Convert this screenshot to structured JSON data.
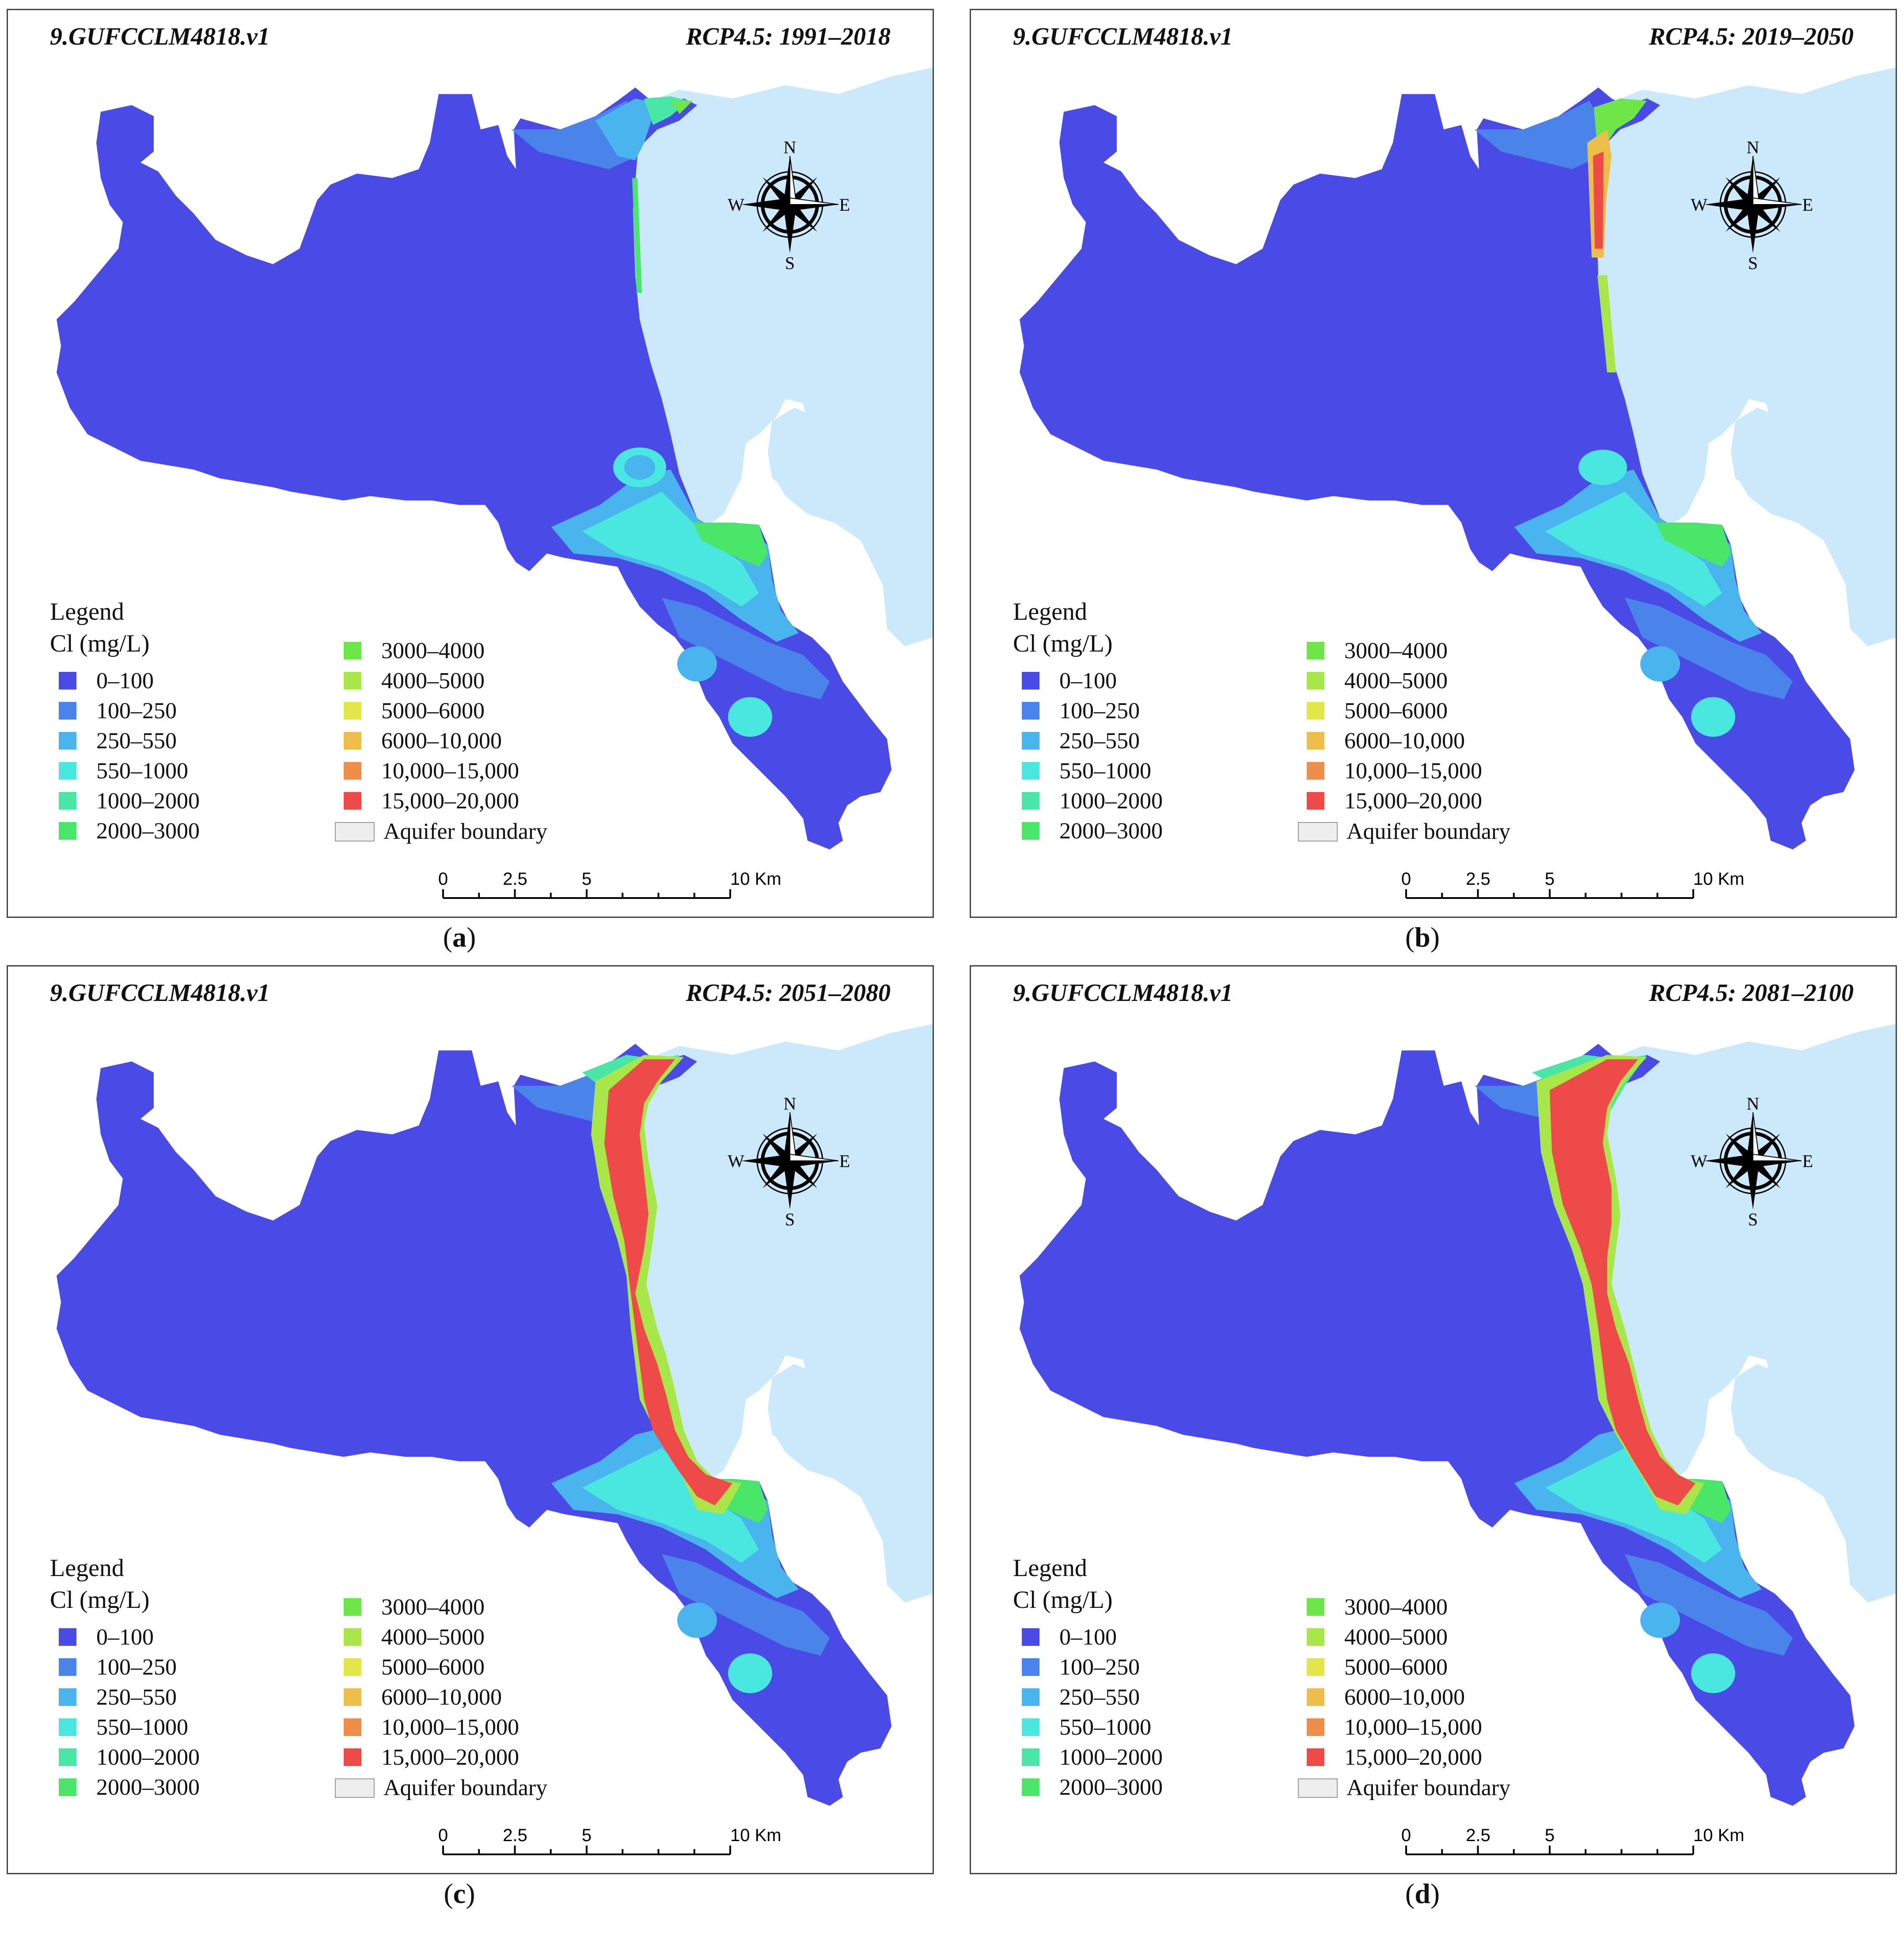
{
  "model_label": "9.GUFCCLM4818.v1",
  "panels": [
    {
      "scenario": "RCP4.5: 1991–2018",
      "letter": "a",
      "stage": 0
    },
    {
      "scenario": "RCP4.5: 2019–2050",
      "letter": "b",
      "stage": 1
    },
    {
      "scenario": "RCP4.5: 2051–2080",
      "letter": "c",
      "stage": 2
    },
    {
      "scenario": "RCP4.5: 2081–2100",
      "letter": "d",
      "stage": 3
    }
  ],
  "legend": {
    "title": "Legend",
    "unit": "Cl (mg/L)",
    "classes": [
      {
        "label": "0–100",
        "color": "#4a4ae6"
      },
      {
        "label": "100–250",
        "color": "#4a84ea"
      },
      {
        "label": "250–550",
        "color": "#4ab4ee"
      },
      {
        "label": "550–1000",
        "color": "#4ae6e0"
      },
      {
        "label": "1000–2000",
        "color": "#4ae6a8"
      },
      {
        "label": "2000–3000",
        "color": "#4ae66a"
      },
      {
        "label": "3000–4000",
        "color": "#6ee64a"
      },
      {
        "label": "4000–5000",
        "color": "#a8e64a"
      },
      {
        "label": "5000–6000",
        "color": "#e2e64a"
      },
      {
        "label": "6000–10,000",
        "color": "#eebe4a"
      },
      {
        "label": "10,000–15,000",
        "color": "#ee8e4a"
      },
      {
        "label": "15,000–20,000",
        "color": "#ee4a4a"
      }
    ],
    "boundary_label": "Aquifer boundary"
  },
  "scale_bar": {
    "ticks": [
      "0",
      "2.5",
      "5",
      "10 Km"
    ]
  },
  "compass": {
    "n": "N",
    "s": "S",
    "e": "E",
    "w": "W"
  },
  "colors": {
    "sea": "#cce9fb",
    "aquifer_background": "#4a4ae6"
  }
}
